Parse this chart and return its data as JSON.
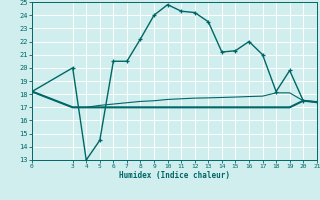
{
  "title": "",
  "xlabel": "Humidex (Indice chaleur)",
  "xlim": [
    0,
    21
  ],
  "ylim": [
    13,
    25
  ],
  "xticks": [
    0,
    3,
    4,
    5,
    6,
    7,
    8,
    9,
    10,
    11,
    12,
    13,
    14,
    15,
    16,
    17,
    18,
    19,
    20,
    21
  ],
  "yticks": [
    13,
    14,
    15,
    16,
    17,
    18,
    19,
    20,
    21,
    22,
    23,
    24,
    25
  ],
  "bg_color": "#d0eeee",
  "grid_color": "#b8dede",
  "line_color": "#006666",
  "line1_x": [
    0,
    3,
    4,
    5,
    6,
    7,
    8,
    9,
    10,
    11,
    12,
    13,
    14,
    15,
    16,
    17,
    18,
    19,
    20,
    21
  ],
  "line1_y": [
    18.2,
    20.0,
    13.0,
    14.5,
    20.5,
    20.5,
    22.2,
    24.0,
    24.8,
    24.3,
    24.2,
    23.5,
    21.2,
    21.3,
    22.0,
    21.0,
    18.2,
    19.8,
    17.5,
    17.4
  ],
  "line2_x": [
    0,
    3,
    4,
    5,
    6,
    7,
    8,
    9,
    10,
    11,
    12,
    13,
    14,
    15,
    16,
    17,
    18,
    19,
    20,
    21
  ],
  "line2_y": [
    18.2,
    17.0,
    17.0,
    17.15,
    17.25,
    17.35,
    17.45,
    17.5,
    17.6,
    17.65,
    17.7,
    17.72,
    17.75,
    17.78,
    17.82,
    17.85,
    18.1,
    18.1,
    17.5,
    17.4
  ],
  "line3_x": [
    0,
    3,
    4,
    5,
    6,
    7,
    8,
    9,
    10,
    11,
    12,
    13,
    14,
    15,
    16,
    17,
    18,
    19,
    20,
    21
  ],
  "line3_y": [
    18.2,
    17.0,
    17.0,
    17.0,
    17.0,
    17.0,
    17.0,
    17.0,
    17.0,
    17.0,
    17.0,
    17.0,
    17.0,
    17.0,
    17.0,
    17.0,
    17.0,
    17.0,
    17.5,
    17.4
  ]
}
